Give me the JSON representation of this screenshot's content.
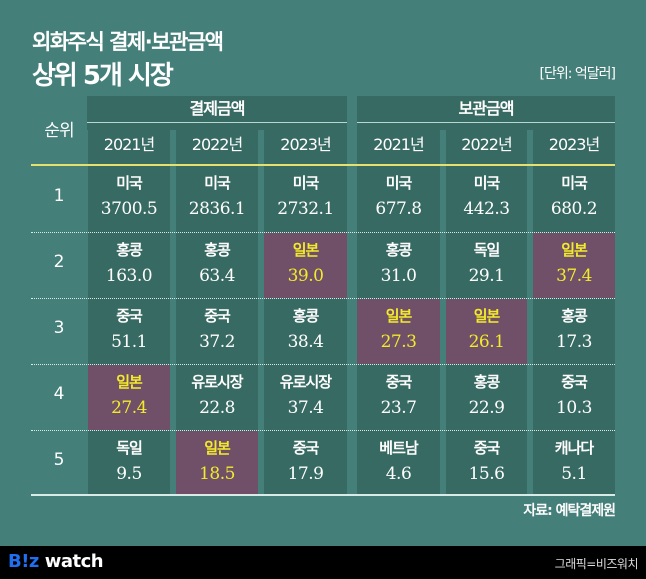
{
  "title": {
    "line1": "외화주식 결제·보관금액",
    "line2": "상위 5개 시장",
    "unit": "[단위: 억달러]"
  },
  "table": {
    "rank_header": "순위",
    "groups": [
      {
        "label": "결제금액",
        "years": [
          "2021년",
          "2022년",
          "2023년"
        ]
      },
      {
        "label": "보관금액",
        "years": [
          "2021년",
          "2022년",
          "2023년"
        ]
      }
    ],
    "rows": [
      {
        "rank": "1",
        "cells": [
          {
            "country": "미국",
            "value": "3700.5",
            "highlight": false
          },
          {
            "country": "미국",
            "value": "2836.1",
            "highlight": false
          },
          {
            "country": "미국",
            "value": "2732.1",
            "highlight": false
          },
          {
            "country": "미국",
            "value": "677.8",
            "highlight": false
          },
          {
            "country": "미국",
            "value": "442.3",
            "highlight": false
          },
          {
            "country": "미국",
            "value": "680.2",
            "highlight": false
          }
        ]
      },
      {
        "rank": "2",
        "cells": [
          {
            "country": "홍콩",
            "value": "163.0",
            "highlight": false
          },
          {
            "country": "홍콩",
            "value": "63.4",
            "highlight": false
          },
          {
            "country": "일본",
            "value": "39.0",
            "highlight": true
          },
          {
            "country": "홍콩",
            "value": "31.0",
            "highlight": false
          },
          {
            "country": "독일",
            "value": "29.1",
            "highlight": false
          },
          {
            "country": "일본",
            "value": "37.4",
            "highlight": true
          }
        ]
      },
      {
        "rank": "3",
        "cells": [
          {
            "country": "중국",
            "value": "51.1",
            "highlight": false
          },
          {
            "country": "중국",
            "value": "37.2",
            "highlight": false
          },
          {
            "country": "홍콩",
            "value": "38.4",
            "highlight": false
          },
          {
            "country": "일본",
            "value": "27.3",
            "highlight": true
          },
          {
            "country": "일본",
            "value": "26.1",
            "highlight": true
          },
          {
            "country": "홍콩",
            "value": "17.3",
            "highlight": false
          }
        ]
      },
      {
        "rank": "4",
        "cells": [
          {
            "country": "일본",
            "value": "27.4",
            "highlight": true
          },
          {
            "country": "유로시장",
            "value": "22.8",
            "highlight": false
          },
          {
            "country": "유로시장",
            "value": "37.4",
            "highlight": false
          },
          {
            "country": "중국",
            "value": "23.7",
            "highlight": false
          },
          {
            "country": "홍콩",
            "value": "22.9",
            "highlight": false
          },
          {
            "country": "중국",
            "value": "10.3",
            "highlight": false
          }
        ]
      },
      {
        "rank": "5",
        "cells": [
          {
            "country": "독일",
            "value": "9.5",
            "highlight": false
          },
          {
            "country": "일본",
            "value": "18.5",
            "highlight": true
          },
          {
            "country": "중국",
            "value": "17.9",
            "highlight": false
          },
          {
            "country": "베트남",
            "value": "4.6",
            "highlight": false
          },
          {
            "country": "중국",
            "value": "15.6",
            "highlight": false
          },
          {
            "country": "캐나다",
            "value": "5.1",
            "highlight": false
          }
        ]
      }
    ]
  },
  "source": "자료: 예탁결제원",
  "footer": {
    "logo_b": "B!z",
    "logo_w": "watch",
    "credit": "그래픽=비즈워치"
  },
  "colors": {
    "background": "#447f79",
    "cell": "#376a63",
    "highlight_cell": "#6f5068",
    "highlight_text": "#f2ea2b",
    "header_rule": "#e6e06e",
    "footer": "#000000",
    "logo_accent": "#1f6ff0"
  }
}
